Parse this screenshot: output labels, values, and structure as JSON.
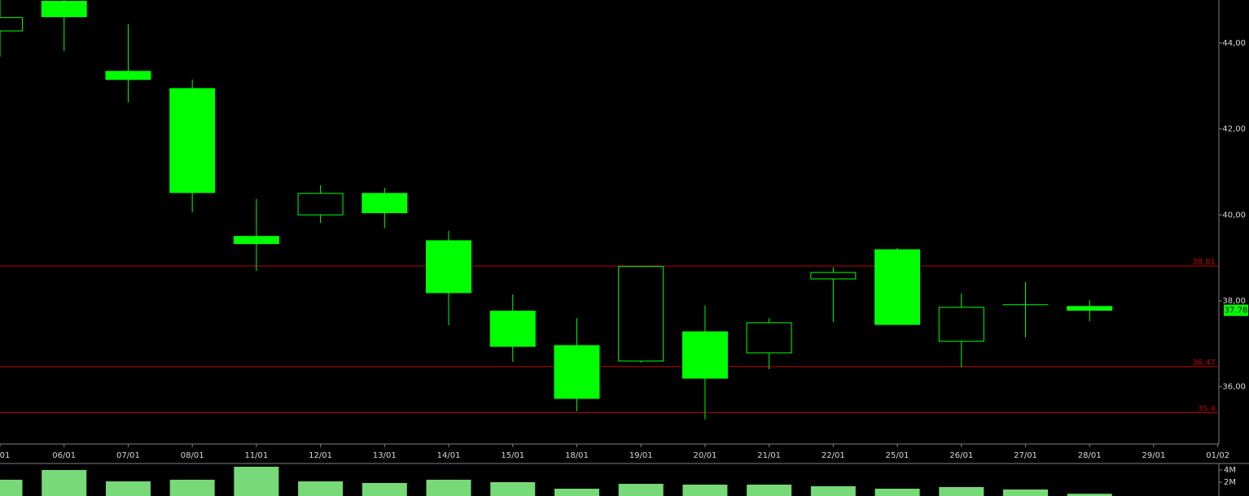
{
  "chart_data": {
    "type": "candlestick",
    "categories": [
      "01",
      "06/01",
      "07/01",
      "08/01",
      "11/01",
      "12/01",
      "13/01",
      "14/01",
      "15/01",
      "18/01",
      "19/01",
      "20/01",
      "21/01",
      "22/01",
      "25/01",
      "26/01",
      "27/01",
      "28/01",
      "29/01",
      "01/02"
    ],
    "open": [
      44.28,
      44.97,
      43.34,
      42.94,
      39.5,
      40.0,
      40.5,
      39.4,
      37.76,
      36.96,
      36.6,
      37.28,
      36.79,
      38.51,
      39.19,
      37.06,
      37.91,
      37.87,
      null,
      null
    ],
    "high": [
      45.0,
      45.0,
      44.44,
      43.15,
      40.37,
      40.69,
      40.63,
      39.63,
      38.15,
      37.6,
      38.81,
      37.89,
      37.6,
      38.78,
      39.23,
      38.17,
      38.44,
      38.02,
      null,
      null
    ],
    "low": [
      43.68,
      43.81,
      42.62,
      40.06,
      38.7,
      39.81,
      39.69,
      37.43,
      36.58,
      35.43,
      36.56,
      35.24,
      36.41,
      37.51,
      37.45,
      36.45,
      37.15,
      37.53,
      null,
      null
    ],
    "close": [
      44.59,
      44.61,
      43.15,
      40.52,
      39.33,
      40.5,
      40.05,
      38.19,
      36.94,
      35.73,
      38.8,
      36.2,
      37.49,
      38.66,
      37.45,
      37.85,
      37.91,
      37.78,
      null,
      null
    ],
    "color": "#00ff00",
    "ylim": [
      34.67,
      45.0
    ],
    "yticks": [
      {
        "value": 36,
        "label": "36,00"
      },
      {
        "value": 38,
        "label": "38,00"
      },
      {
        "value": 40,
        "label": "40,00"
      },
      {
        "value": 42,
        "label": "42,00"
      },
      {
        "value": 44,
        "label": "44,00"
      }
    ],
    "reference_lines": [
      {
        "value": 38.81,
        "label": "38.81"
      },
      {
        "value": 36.47,
        "label": "36.47"
      },
      {
        "value": 35.4,
        "label": "35.4"
      }
    ],
    "reference_color": "#c00000",
    "volume": {
      "values": [
        2400000,
        4000000,
        2130000,
        2400000,
        4530000,
        2130000,
        1870000,
        2400000,
        2000000,
        930000,
        1730000,
        1600000,
        1600000,
        1330000,
        930000,
        1200000,
        800000,
        100000,
        null,
        null
      ],
      "color": "#77d977",
      "ylim": [
        0,
        4800000
      ],
      "yticks": [
        {
          "value": 2000000,
          "label": "2M"
        },
        {
          "value": 4000000,
          "label": "4M"
        }
      ]
    }
  }
}
